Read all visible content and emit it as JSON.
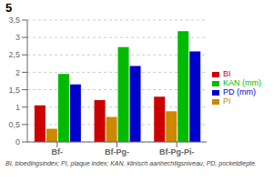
{
  "chart_data": {
    "type": "bar",
    "title": "5",
    "categories": [
      "Bf-",
      "Bf-Pg-",
      "Bf-Pg-Pi-"
    ],
    "series": [
      {
        "name": "BI",
        "color": "#cc0000",
        "values": [
          1.05,
          1.2,
          1.3
        ]
      },
      {
        "name": "PI",
        "color": "#cc8800",
        "values": [
          0.38,
          0.72,
          0.88
        ]
      },
      {
        "name": "KAN (mm)",
        "color": "#00bb00",
        "values": [
          1.95,
          2.72,
          3.18
        ]
      },
      {
        "name": "PD (mm)",
        "color": "#0000cc",
        "values": [
          1.65,
          2.18,
          2.6
        ]
      }
    ],
    "ylim": [
      0,
      3.5
    ],
    "yticks": [
      0,
      {
        "value": 0.5,
        "label": "0,5"
      },
      1,
      {
        "value": 1.5,
        "label": "1,5"
      },
      2,
      {
        "value": 2.5,
        "label": "2,5"
      },
      3,
      {
        "value": 3.5,
        "label": "3,5"
      }
    ],
    "grid": true,
    "legend": "right",
    "annotations": [
      "BI, bloedingsindex; PI, plaque index; KAN, klinisch aanhechtigsniveau; PD, pocketdiepte."
    ]
  }
}
